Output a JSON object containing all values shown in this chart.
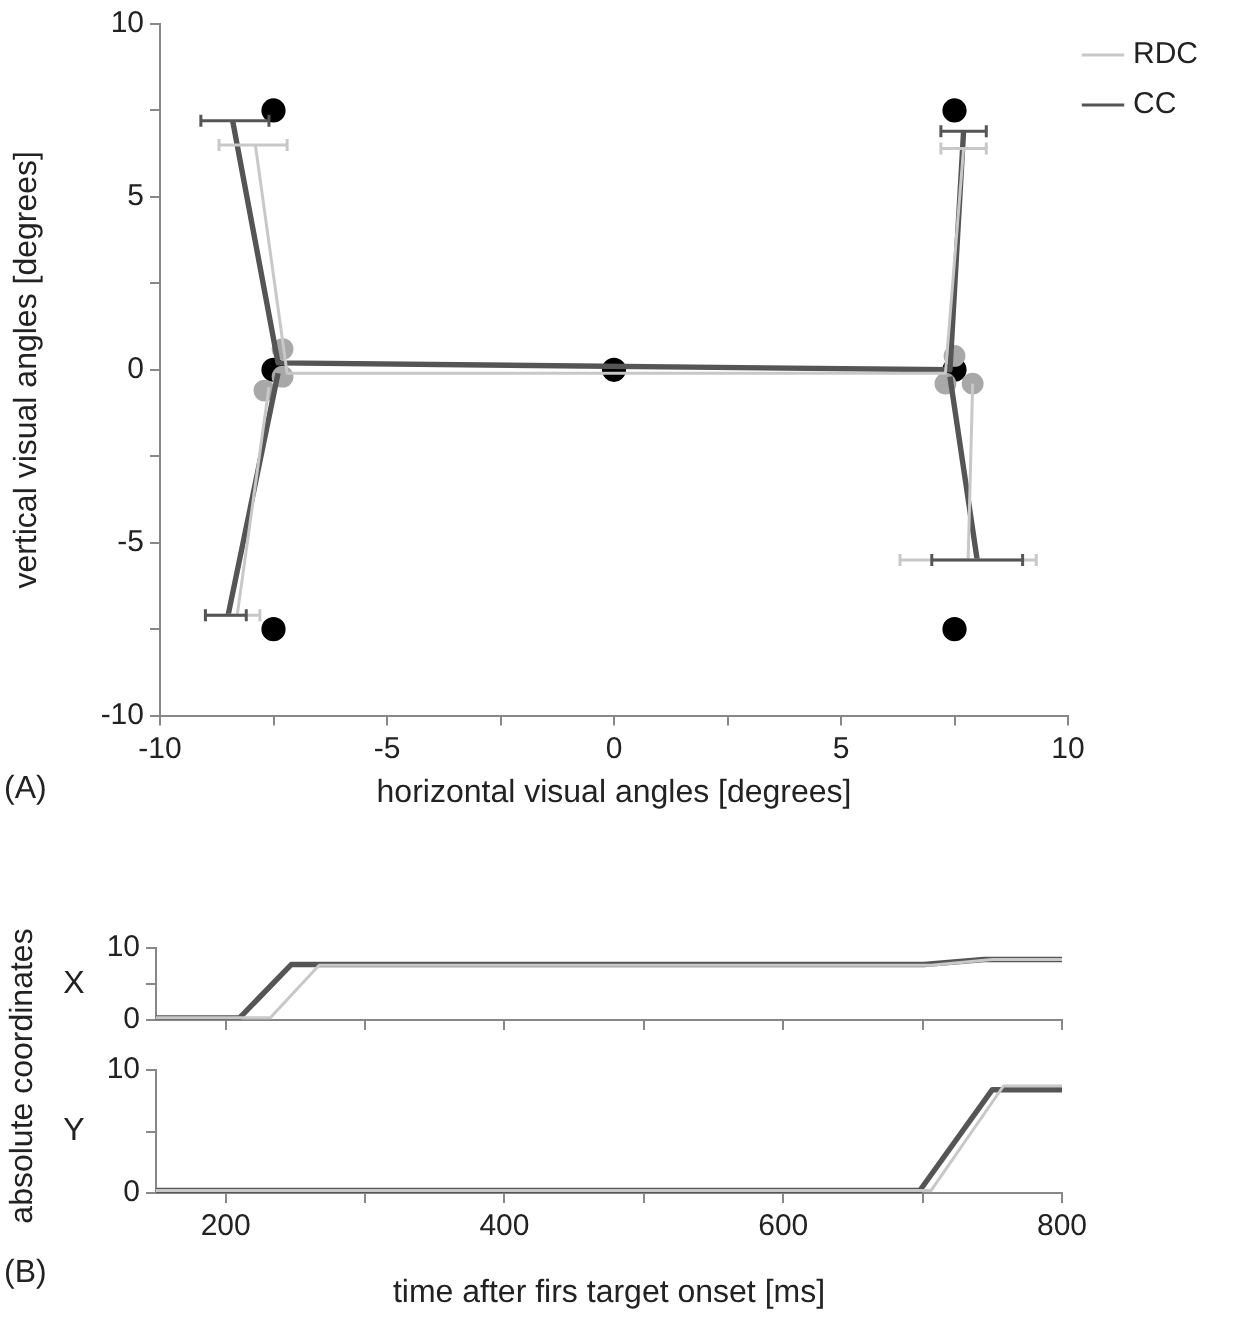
{
  "chart_data": [
    {
      "type": "line",
      "xlabel": "horizontal visual angles [degrees]",
      "ylabel": "vertical visual angles [degrees]",
      "xlim": [
        -10,
        10
      ],
      "ylim": [
        -10,
        10
      ],
      "xticks": [
        -10,
        {
          "value": -7.5,
          "label": null
        },
        -5,
        {
          "value": -2.5,
          "label": null
        },
        0,
        {
          "value": 2.5,
          "label": null
        },
        5,
        {
          "value": 7.5,
          "label": null
        },
        10
      ],
      "yticks": [
        -10,
        {
          "value": -7.5,
          "label": null
        },
        -5,
        {
          "value": -2.5,
          "label": null
        },
        0,
        {
          "value": 2.5,
          "label": null
        },
        5,
        {
          "value": 7.5,
          "label": null
        },
        10
      ],
      "legend": "right",
      "grid": false,
      "annotations": [
        "(A)"
      ],
      "series": [
        {
          "name": "RDC",
          "marker": "none",
          "color": "#c8c8c8",
          "x": [
            -7.9,
            -7.2,
            7.3,
            7.7,
            null,
            -8.3,
            -7.6,
            null,
            7.9,
            7.8
          ],
          "values": [
            6.5,
            -0.1,
            -0.1,
            6.4,
            null,
            -7.1,
            -0.5,
            null,
            -0.4,
            -5.5
          ],
          "xerrors": [
            [
              -8.7,
              -7.2
            ],
            null,
            null,
            [
              7.2,
              8.2
            ],
            null,
            [
              -9.0,
              -7.8
            ],
            null,
            null,
            null,
            [
              6.3,
              9.3
            ]
          ]
        },
        {
          "name": "CC",
          "marker": "none",
          "color": "#555555",
          "x": [
            -8.4,
            -7.4,
            7.4,
            7.7,
            null,
            -8.5,
            -7.4,
            null,
            7.4,
            8.0
          ],
          "values": [
            7.2,
            0.2,
            0.0,
            6.9,
            null,
            -7.1,
            -0.1,
            null,
            -0.2,
            -5.5
          ],
          "xerrors": [
            [
              -9.1,
              -7.6
            ],
            null,
            null,
            [
              7.2,
              8.2
            ],
            null,
            [
              -9.0,
              -8.1
            ],
            null,
            null,
            null,
            [
              7.0,
              9.0
            ]
          ]
        },
        {
          "type": "scatter",
          "marker": "circle",
          "color": "#a8a8a8",
          "x": [
            -7.3,
            -7.3,
            -7.7,
            7.5,
            7.3,
            7.9
          ],
          "values": [
            0.6,
            -0.2,
            -0.6,
            0.4,
            -0.4,
            -0.4
          ]
        },
        {
          "type": "scatter",
          "marker": "circle",
          "color": "#000000",
          "x": [
            -7.5,
            -7.5,
            0,
            7.5,
            7.5,
            7.5,
            -7.5
          ],
          "values": [
            7.5,
            0,
            0,
            7.5,
            0,
            -7.5,
            -7.5
          ]
        }
      ]
    },
    {
      "type": "line",
      "ylabel": "X",
      "xlim": [
        150,
        800
      ],
      "ylim": [
        0,
        10
      ],
      "tick_labels": "y",
      "grid": false,
      "annotations": [
        "absolute coordinates"
      ],
      "xticks": [
        200,
        {
          "value": 300,
          "label": null
        },
        400,
        {
          "value": 500,
          "label": null
        },
        600,
        {
          "value": 700,
          "label": null
        },
        800
      ],
      "yticks": [
        0,
        {
          "value": 5,
          "label": null
        },
        10
      ],
      "series": [
        {
          "color": "#c8c8c8",
          "x": [
            150,
            232,
            267,
            706,
            750,
            800
          ],
          "values": [
            0.3,
            0.3,
            7.6,
            7.6,
            8.4,
            8.4
          ]
        },
        {
          "color": "#555555",
          "x": [
            150,
            210,
            247,
            701,
            744,
            800
          ],
          "values": [
            0.3,
            0.3,
            7.7,
            7.7,
            8.4,
            8.4
          ]
        }
      ]
    },
    {
      "type": "line",
      "ylabel": "Y",
      "xlabel": "time after firs target onset [ms]",
      "xlim": [
        150,
        800
      ],
      "ylim": [
        0,
        10
      ],
      "grid": false,
      "annotations": [
        "(B)"
      ],
      "xticks": [
        200,
        {
          "value": 300,
          "label": null
        },
        400,
        {
          "value": 500,
          "label": null
        },
        600,
        {
          "value": 700,
          "label": null
        },
        800
      ],
      "yticks": [
        0,
        {
          "value": 5,
          "label": null
        },
        10
      ],
      "series": [
        {
          "color": "#c8c8c8",
          "x": [
            150,
            706,
            758,
            800
          ],
          "values": [
            0.2,
            0.2,
            8.7,
            8.7
          ]
        },
        {
          "color": "#555555",
          "x": [
            150,
            698,
            750,
            800
          ],
          "values": [
            0.2,
            0.2,
            8.4,
            8.4
          ]
        }
      ]
    }
  ]
}
